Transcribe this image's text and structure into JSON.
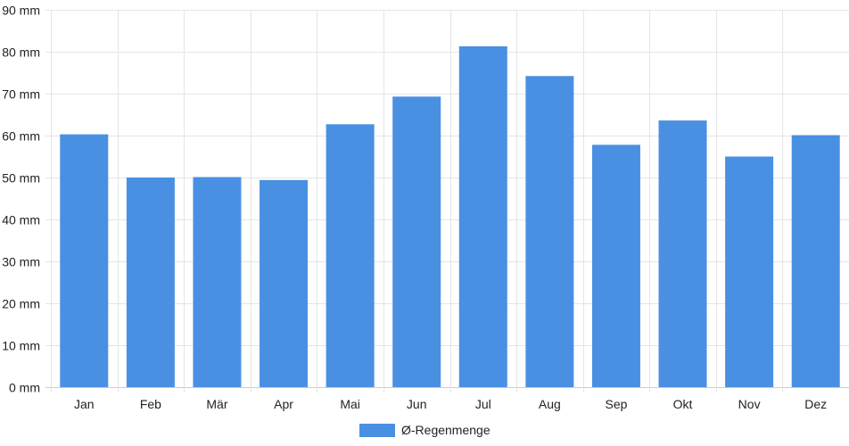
{
  "chart_data": {
    "type": "bar",
    "categories": [
      "Jan",
      "Feb",
      "Mär",
      "Apr",
      "Mai",
      "Jun",
      "Jul",
      "Aug",
      "Sep",
      "Okt",
      "Nov",
      "Dez"
    ],
    "series": [
      {
        "name": "Ø-Regenmenge",
        "values": [
          60.3,
          50.0,
          50.1,
          49.4,
          62.7,
          69.3,
          81.3,
          74.2,
          57.8,
          63.6,
          55.0,
          60.1
        ],
        "color": "#4a90e2"
      }
    ],
    "y_unit": "mm",
    "ylim": [
      0,
      90
    ],
    "y_ticks": [
      0,
      10,
      20,
      30,
      40,
      50,
      60,
      70,
      80,
      90
    ],
    "grid": true,
    "legend_position": "bottom-center",
    "title": "",
    "xlabel": "",
    "ylabel": ""
  }
}
